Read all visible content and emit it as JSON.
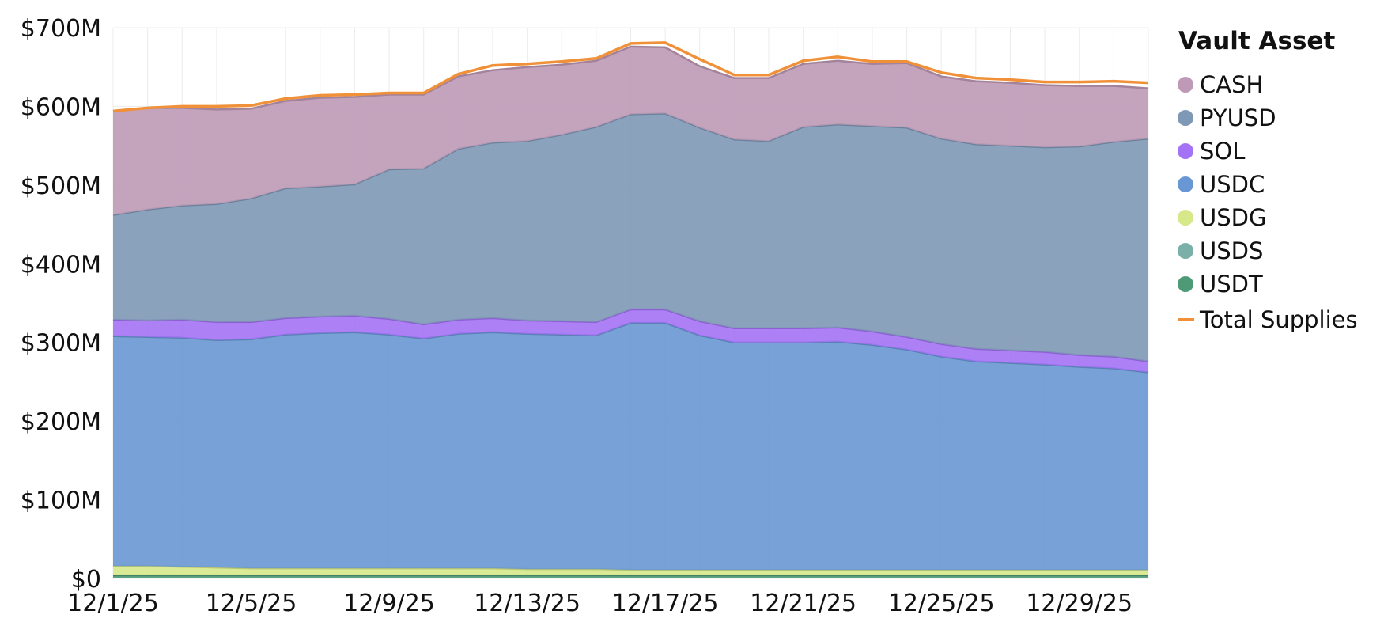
{
  "chart_data": {
    "type": "area",
    "stacked": true,
    "xlabel": "",
    "ylabel": "",
    "ylim": [
      0,
      700
    ],
    "y_unit": "millions USD",
    "y_ticks": [
      0,
      100,
      200,
      300,
      400,
      500,
      600,
      700
    ],
    "y_tick_labels": [
      "$0",
      "$100M",
      "$200M",
      "$300M",
      "$400M",
      "$500M",
      "$600M",
      "$700M"
    ],
    "x": [
      "12/1/25",
      "12/2/25",
      "12/3/25",
      "12/4/25",
      "12/5/25",
      "12/6/25",
      "12/7/25",
      "12/8/25",
      "12/9/25",
      "12/10/25",
      "12/11/25",
      "12/12/25",
      "12/13/25",
      "12/14/25",
      "12/15/25",
      "12/16/25",
      "12/17/25",
      "12/18/25",
      "12/19/25",
      "12/20/25",
      "12/21/25",
      "12/22/25",
      "12/23/25",
      "12/24/25",
      "12/25/25",
      "12/26/25",
      "12/27/25",
      "12/28/25",
      "12/29/25",
      "12/30/25",
      "12/31/25"
    ],
    "x_tick_labels": [
      "12/1/25",
      "12/5/25",
      "12/9/25",
      "12/13/25",
      "12/17/25",
      "12/21/25",
      "12/25/25",
      "12/29/25"
    ],
    "grid": true,
    "legend": {
      "title": "Vault Asset",
      "position": "right"
    },
    "series": [
      {
        "name": "USDT",
        "color": "#4E9A77",
        "values": [
          4,
          4,
          4,
          4,
          4,
          4,
          4,
          4,
          4,
          4,
          4,
          4,
          4,
          4,
          4,
          4,
          4,
          4,
          4,
          4,
          4,
          4,
          4,
          4,
          4,
          4,
          4,
          4,
          4,
          4,
          4
        ]
      },
      {
        "name": "USDS",
        "color": "#7BB0A9",
        "values": [
          0,
          0,
          0,
          0,
          0,
          0,
          0,
          0,
          0,
          0,
          0,
          0,
          0,
          0,
          0,
          0,
          0,
          0,
          0,
          0,
          0,
          0,
          0,
          0,
          0,
          0,
          0,
          0,
          0,
          0,
          0
        ]
      },
      {
        "name": "USDG",
        "color": "#D7E88A",
        "values": [
          12,
          12,
          11,
          10,
          9,
          9,
          9,
          9,
          9,
          9,
          9,
          9,
          8,
          8,
          8,
          7,
          7,
          7,
          7,
          7,
          7,
          7,
          7,
          7,
          7,
          7,
          7,
          7,
          7,
          7,
          7
        ]
      },
      {
        "name": "USDC",
        "color": "#6897D3",
        "values": [
          292,
          291,
          291,
          289,
          291,
          297,
          299,
          300,
          297,
          292,
          298,
          300,
          299,
          298,
          297,
          314,
          314,
          298,
          289,
          289,
          289,
          290,
          286,
          280,
          271,
          265,
          263,
          261,
          258,
          256,
          251
        ]
      },
      {
        "name": "SOL",
        "color": "#A472F5",
        "values": [
          21,
          21,
          23,
          23,
          22,
          21,
          21,
          21,
          20,
          18,
          18,
          18,
          17,
          17,
          17,
          17,
          17,
          18,
          18,
          18,
          18,
          18,
          17,
          16,
          16,
          16,
          16,
          16,
          15,
          15,
          14
        ]
      },
      {
        "name": "PYUSD",
        "color": "#7E98B6",
        "values": [
          133,
          141,
          145,
          150,
          157,
          165,
          165,
          167,
          190,
          198,
          217,
          223,
          228,
          237,
          248,
          248,
          249,
          246,
          240,
          238,
          256,
          258,
          261,
          266,
          261,
          260,
          260,
          260,
          265,
          273,
          283
        ]
      },
      {
        "name": "CASH",
        "color": "#BE9AB6",
        "values": [
          132,
          129,
          124,
          120,
          114,
          111,
          113,
          111,
          95,
          94,
          92,
          92,
          94,
          89,
          84,
          86,
          84,
          78,
          78,
          80,
          80,
          81,
          79,
          82,
          79,
          80,
          80,
          79,
          77,
          71,
          64
        ]
      }
    ],
    "line_series": {
      "name": "Total Supplies",
      "color": "#F0913A",
      "values": [
        594,
        598,
        600,
        600,
        601,
        610,
        614,
        615,
        617,
        617,
        641,
        652,
        654,
        657,
        661,
        680,
        681,
        660,
        640,
        640,
        658,
        663,
        657,
        657,
        643,
        636,
        634,
        631,
        631,
        632,
        630
      ]
    }
  }
}
